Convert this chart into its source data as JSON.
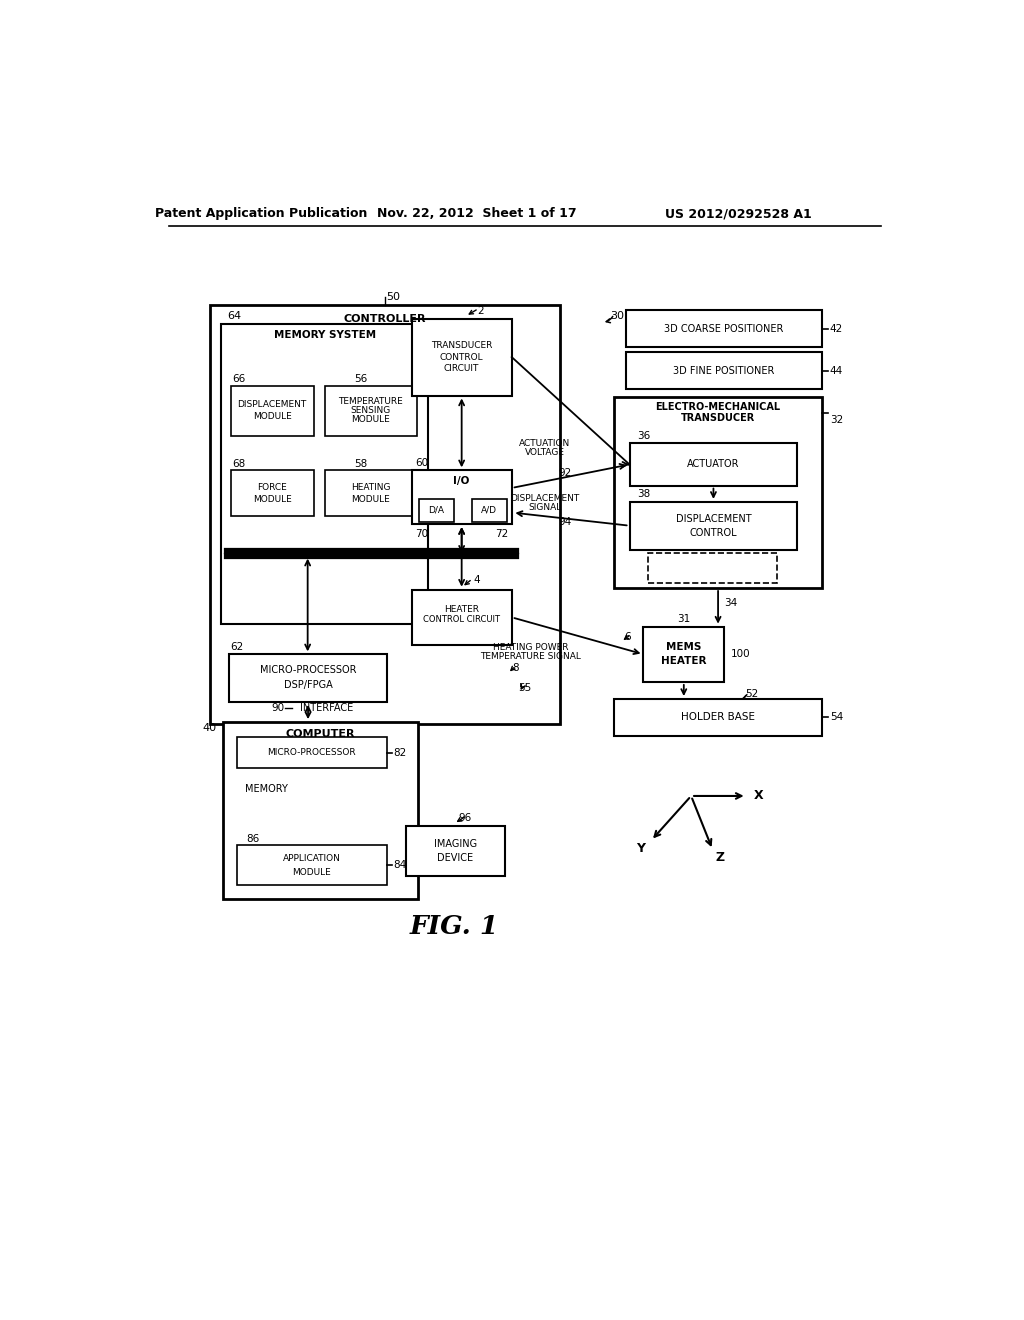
{
  "bg_color": "#ffffff",
  "text_color": "#000000",
  "header_left": "Patent Application Publication",
  "header_center": "Nov. 22, 2012  Sheet 1 of 17",
  "header_right": "US 2012/0292528 A1",
  "fig_label": "FIG. 1"
}
